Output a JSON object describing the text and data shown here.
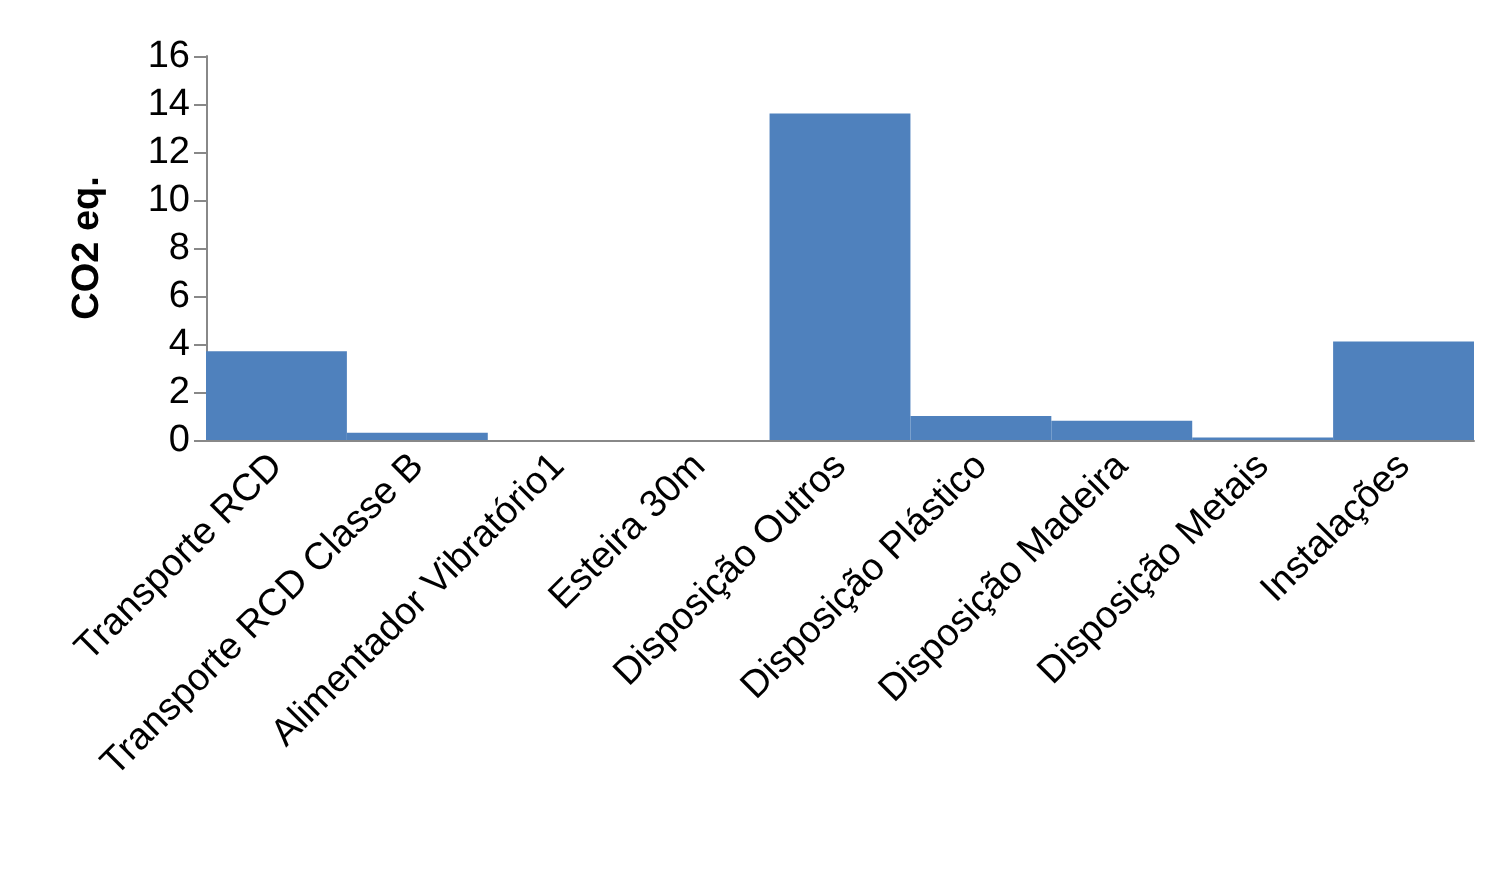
{
  "chart_data": {
    "type": "bar",
    "ylabel": "CO2 eq.",
    "categories": [
      "Transporte RCD",
      "Transporte RCD Classe B",
      "Alimentador Vibratório1",
      "Esteira 30m",
      "Disposição Outros",
      "Disposição Plástico",
      "Disposição Madeira",
      "Disposição Metais",
      "Instalações"
    ],
    "values": [
      3.7,
      0.3,
      0,
      0,
      13.6,
      1.0,
      0.8,
      0.1,
      4.1
    ],
    "color": "#4f81bd",
    "ylim": [
      0,
      16
    ],
    "yticks": [
      0,
      2,
      4,
      6,
      8,
      10,
      12,
      14,
      16
    ],
    "grid": false
  }
}
